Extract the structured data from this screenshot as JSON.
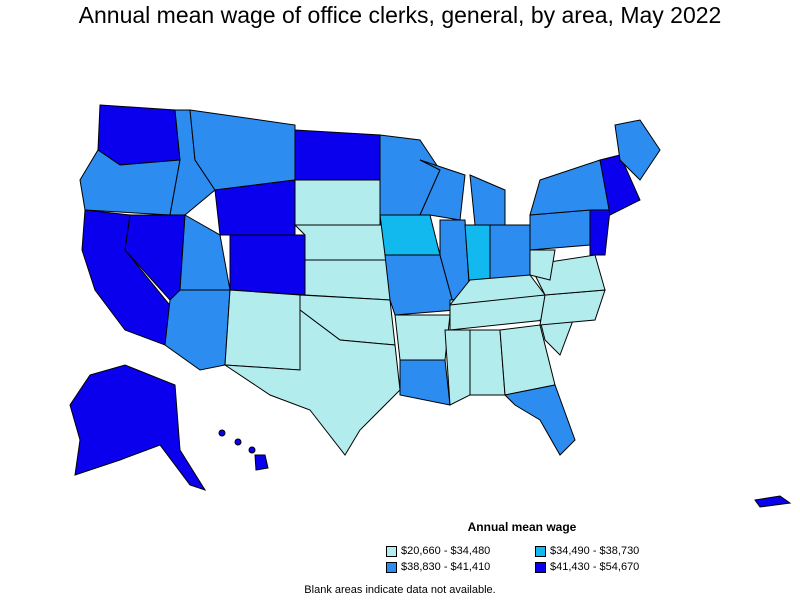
{
  "title": "Annual mean wage of office clerks, general, by area, May 2022",
  "legend": {
    "title": "Annual mean wage",
    "items": [
      {
        "label": "$20,660 - $34,480",
        "color": "#b3ecec"
      },
      {
        "label": "$34,490 - $38,730",
        "color": "#11b9ee"
      },
      {
        "label": "$38,830 - $41,410",
        "color": "#2d8cf0"
      },
      {
        "label": "$41,430 - $54,670",
        "color": "#0b00ee"
      }
    ]
  },
  "note": "Blank areas indicate data not available."
}
